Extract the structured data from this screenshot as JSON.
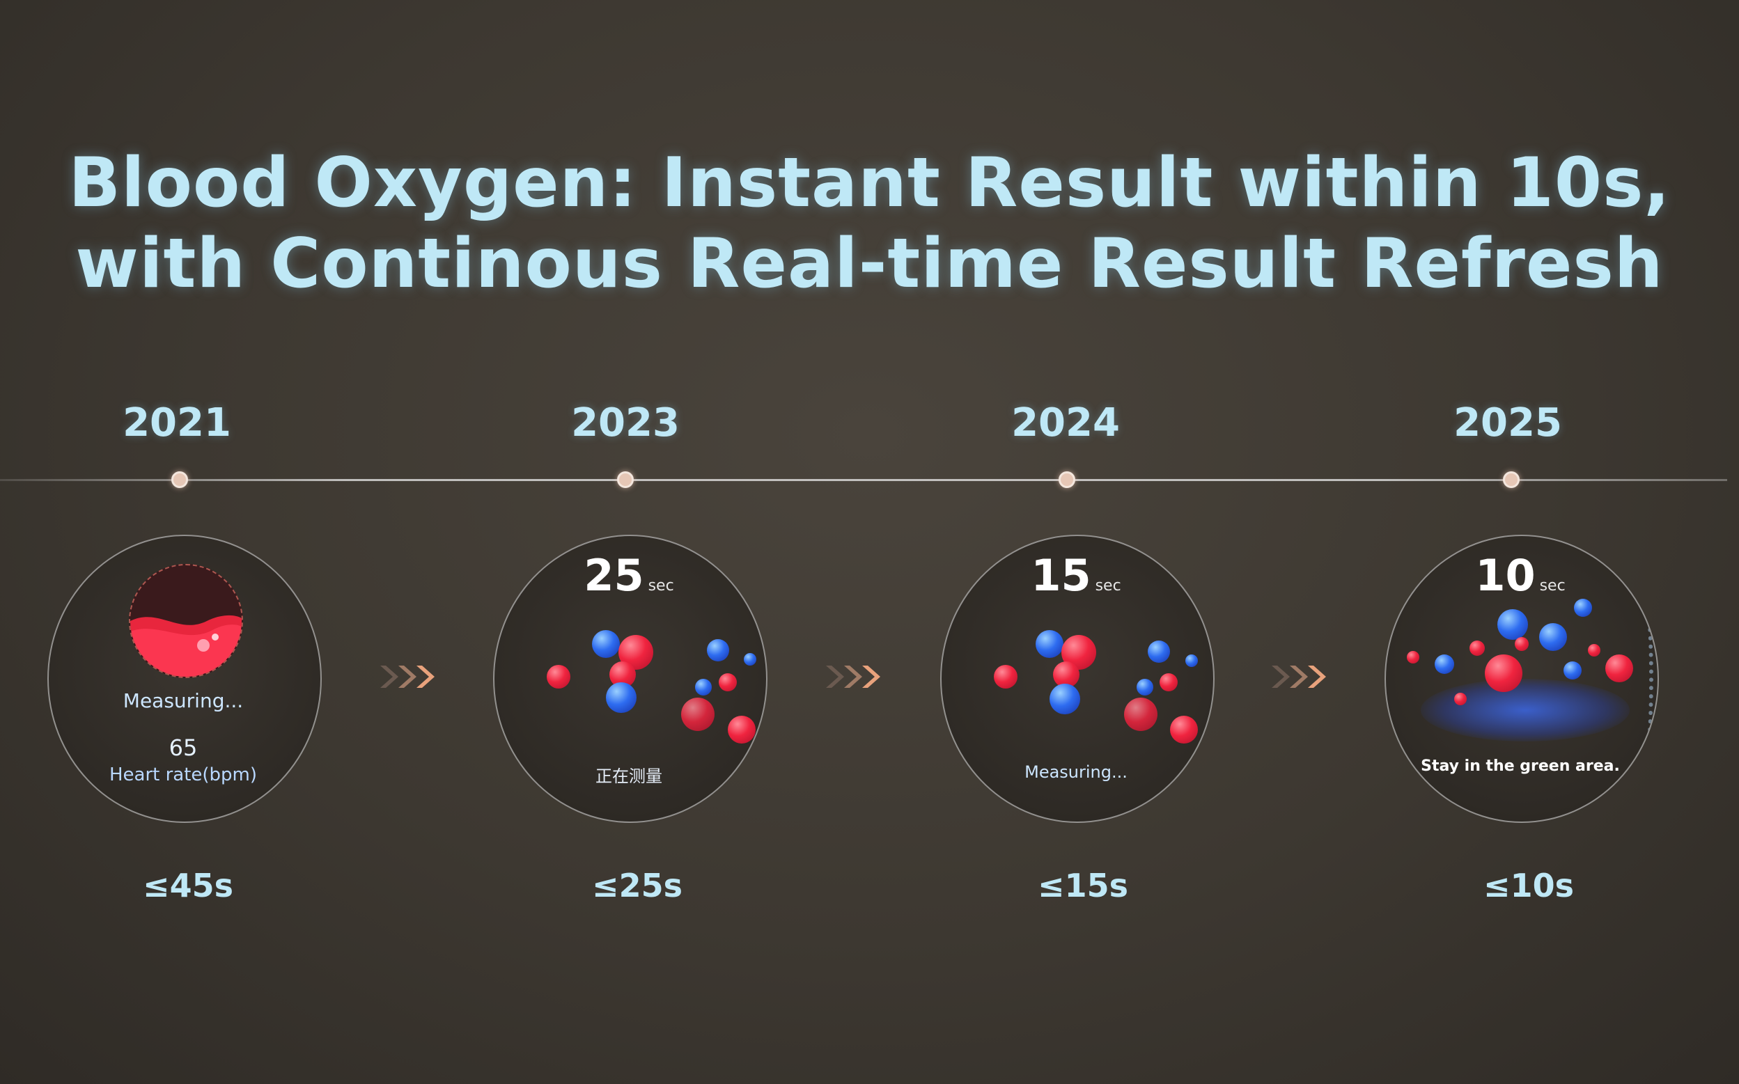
{
  "title": {
    "line1": "Blood Oxygen: Instant Result within 10s,",
    "line2": "with Continous Real-time Result Refresh"
  },
  "stages": [
    {
      "year": "2021",
      "status": "Measuring...",
      "value": "65",
      "value_label": "Heart rate(bpm)",
      "limit": "≤45s"
    },
    {
      "year": "2023",
      "seconds": "25",
      "unit": "sec",
      "status": "正在测量",
      "limit": "≤25s"
    },
    {
      "year": "2024",
      "seconds": "15",
      "unit": "sec",
      "status": "Measuring...",
      "limit": "≤15s"
    },
    {
      "year": "2025",
      "seconds": "10",
      "unit": "sec",
      "status": "Stay in the green area.",
      "limit": "≤10s"
    }
  ],
  "colors": {
    "text": "#bfe8f6",
    "red": "#f0243f",
    "blue": "#2e6cf0",
    "chevron": "#e9a27c"
  }
}
